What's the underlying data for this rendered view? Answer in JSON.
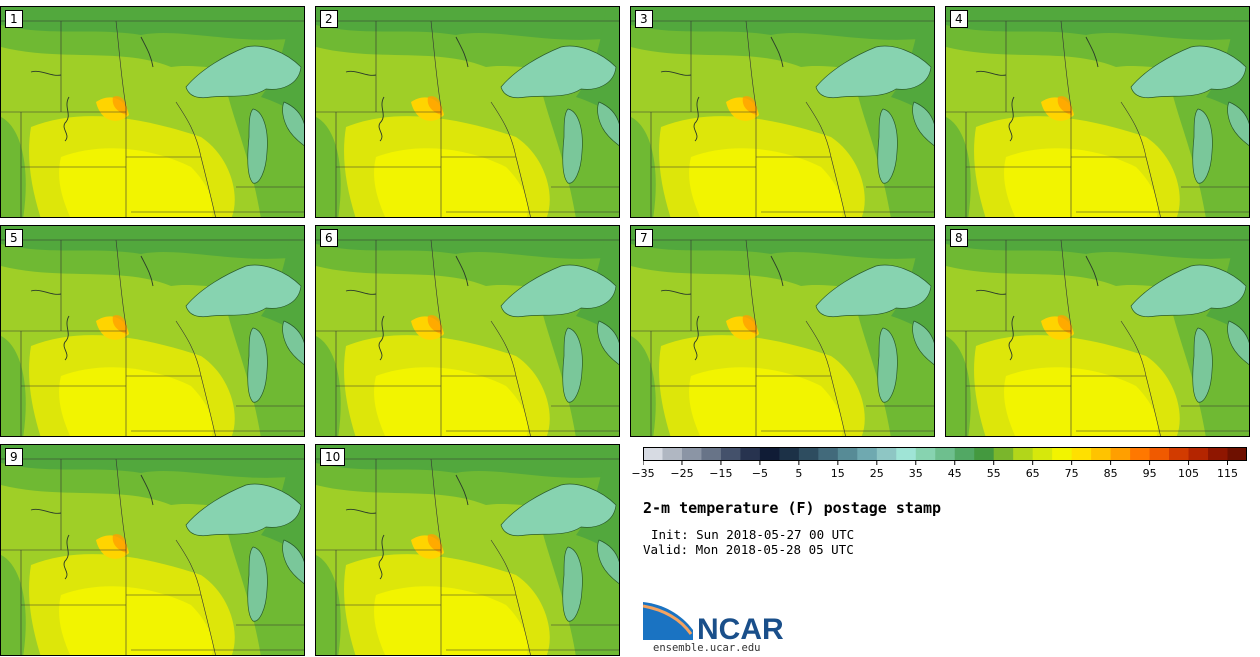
{
  "panels": [
    {
      "number": "1"
    },
    {
      "number": "2"
    },
    {
      "number": "3"
    },
    {
      "number": "4"
    },
    {
      "number": "5"
    },
    {
      "number": "6"
    },
    {
      "number": "7"
    },
    {
      "number": "8"
    },
    {
      "number": "9"
    },
    {
      "number": "10"
    }
  ],
  "colorbar": {
    "colors": [
      "#d7dbe3",
      "#b0b7c2",
      "#8b95a5",
      "#687488",
      "#44516b",
      "#27334f",
      "#101c36",
      "#1c3147",
      "#2e4d60",
      "#426a7b",
      "#578b96",
      "#6fa9b0",
      "#8ec6c4",
      "#9fe4d6",
      "#87d3b0",
      "#6ebf8e",
      "#52a864",
      "#44993f",
      "#7ab62c",
      "#b2d61a",
      "#d6e80c",
      "#f2f400",
      "#ffe000",
      "#ffc300",
      "#ff9f00",
      "#ff7800",
      "#f05a00",
      "#d23b00",
      "#b42500",
      "#8f1600",
      "#6e1000"
    ],
    "tick_labels": [
      "−35",
      "−25",
      "−15",
      "−5",
      "5",
      "15",
      "25",
      "35",
      "45",
      "55",
      "65",
      "75",
      "85",
      "95",
      "105",
      "115"
    ]
  },
  "title": "2-m temperature (F) postage stamp",
  "init_line": "Init: Sun 2018-05-27 00 UTC",
  "valid_line": "Valid: Mon 2018-05-28 05 UTC",
  "logo": {
    "text": "NCAR",
    "site": "ensemble.ucar.edu"
  }
}
